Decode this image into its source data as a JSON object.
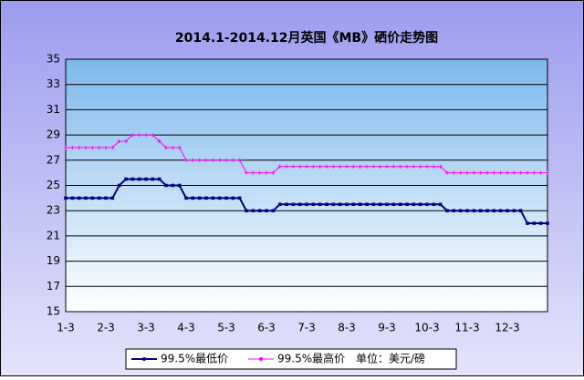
{
  "chart_data": {
    "type": "line",
    "title": "2014.1-2014.12月英国《MB》硒价走势图",
    "categories": [
      "1-3",
      null,
      null,
      null,
      null,
      null,
      "2-3",
      null,
      null,
      null,
      null,
      null,
      "3-3",
      null,
      null,
      null,
      null,
      null,
      "4-3",
      null,
      null,
      null,
      null,
      null,
      "5-3",
      null,
      null,
      null,
      null,
      null,
      "6-3",
      null,
      null,
      null,
      null,
      null,
      "7-3",
      null,
      null,
      null,
      null,
      null,
      "8-3",
      null,
      null,
      null,
      null,
      null,
      "9-3",
      null,
      null,
      null,
      null,
      null,
      "10-3",
      null,
      null,
      null,
      null,
      null,
      "11-3",
      null,
      null,
      null,
      null,
      null,
      "12-3",
      null,
      null,
      null,
      null,
      null,
      null
    ],
    "series": [
      {
        "name": "99.5%最低价",
        "color": "#000080",
        "values": [
          24,
          24,
          24,
          24,
          24,
          24,
          24,
          24,
          25,
          25.5,
          25.5,
          25.5,
          25.5,
          25.5,
          25.5,
          25,
          25,
          25,
          24,
          24,
          24,
          24,
          24,
          24,
          24,
          24,
          24,
          23,
          23,
          23,
          23,
          23,
          23.5,
          23.5,
          23.5,
          23.5,
          23.5,
          23.5,
          23.5,
          23.5,
          23.5,
          23.5,
          23.5,
          23.5,
          23.5,
          23.5,
          23.5,
          23.5,
          23.5,
          23.5,
          23.5,
          23.5,
          23.5,
          23.5,
          23.5,
          23.5,
          23.5,
          23,
          23,
          23,
          23,
          23,
          23,
          23,
          23,
          23,
          23,
          23,
          23,
          22,
          22,
          22,
          22
        ]
      },
      {
        "name": "99.5%最高价",
        "color": "#ff00ff",
        "values": [
          28,
          28,
          28,
          28,
          28,
          28,
          28,
          28,
          28.5,
          28.5,
          29,
          29,
          29,
          29,
          28.5,
          28,
          28,
          28,
          27,
          27,
          27,
          27,
          27,
          27,
          27,
          27,
          27,
          26,
          26,
          26,
          26,
          26,
          26.5,
          26.5,
          26.5,
          26.5,
          26.5,
          26.5,
          26.5,
          26.5,
          26.5,
          26.5,
          26.5,
          26.5,
          26.5,
          26.5,
          26.5,
          26.5,
          26.5,
          26.5,
          26.5,
          26.5,
          26.5,
          26.5,
          26.5,
          26.5,
          26.5,
          26,
          26,
          26,
          26,
          26,
          26,
          26,
          26,
          26,
          26,
          26,
          26,
          26,
          26,
          26,
          26
        ]
      }
    ],
    "unit_note": "单位：美元/磅",
    "ylim": [
      15,
      35
    ],
    "yticks": [
      15,
      17,
      19,
      21,
      23,
      25,
      27,
      29,
      31,
      33,
      35
    ],
    "grid": true
  }
}
